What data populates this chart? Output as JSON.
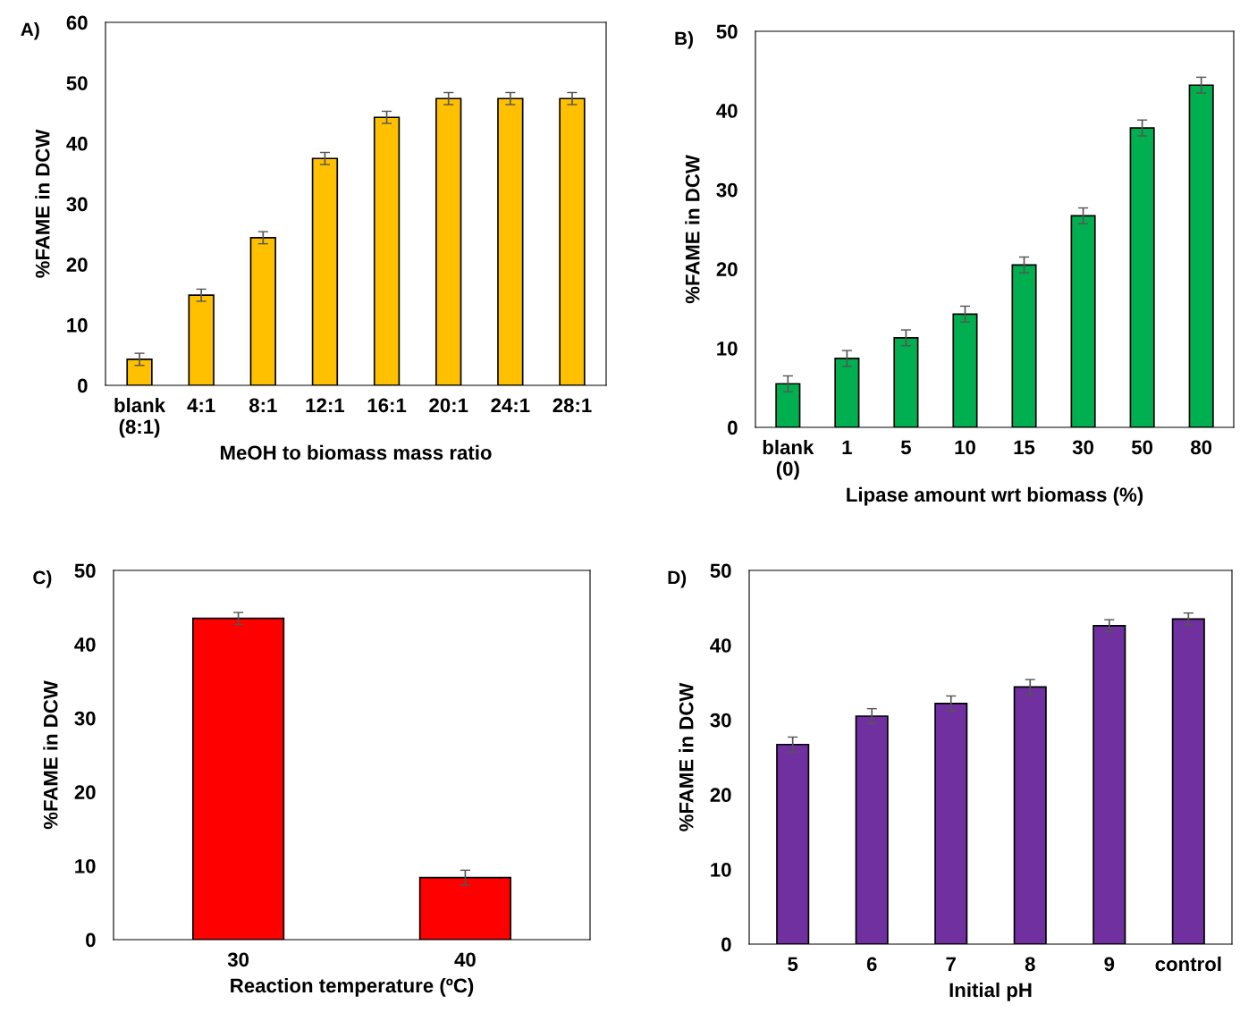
{
  "chart_data": [
    {
      "type": "bar",
      "categories": [
        "blank\n(8:1)",
        "4:1",
        "8:1",
        "12:1",
        "16:1",
        "20:1",
        "24:1",
        "28:1"
      ],
      "values": [
        4.3,
        14.9,
        24.4,
        37.5,
        44.3,
        47.4,
        47.4,
        47.4
      ],
      "errors": [
        1,
        1,
        1,
        1,
        1,
        1,
        1,
        1
      ],
      "color": "#ffc000",
      "xlabel": "MeOH to biomass mass ratio",
      "ylabel": "%FAME in DCW",
      "ylim": [
        0,
        60
      ],
      "yticks": [
        0,
        10,
        20,
        30,
        40,
        50,
        60
      ],
      "annotations": [
        "A)"
      ],
      "grid": false,
      "legend": false
    },
    {
      "type": "bar",
      "categories": [
        "blank\n(0)",
        "1",
        "5",
        "10",
        "15",
        "30",
        "50",
        "80"
      ],
      "values": [
        5.5,
        8.7,
        11.3,
        14.3,
        20.5,
        26.7,
        37.8,
        43.2
      ],
      "errors": [
        1,
        1,
        1,
        1,
        1,
        1,
        1,
        1
      ],
      "color": "#00b050",
      "xlabel": "Lipase amount wrt biomass (%)",
      "ylabel": "%FAME in DCW",
      "ylim": [
        0,
        50
      ],
      "yticks": [
        0,
        10,
        20,
        30,
        40,
        50
      ],
      "annotations": [
        "B)"
      ],
      "grid": false,
      "legend": false
    },
    {
      "type": "bar",
      "categories": [
        "30",
        "40"
      ],
      "values": [
        43.5,
        8.4
      ],
      "errors": [
        0.8,
        1
      ],
      "color": "#ff0000",
      "xlabel": "Reaction temperature (ºC)",
      "ylabel": "%FAME in DCW",
      "ylim": [
        0,
        50
      ],
      "yticks": [
        0,
        10,
        20,
        30,
        40,
        50
      ],
      "annotations": [
        "C)"
      ],
      "grid": false,
      "legend": false
    },
    {
      "type": "bar",
      "categories": [
        "5",
        "6",
        "7",
        "8",
        "9",
        "control"
      ],
      "values": [
        26.7,
        30.5,
        32.2,
        34.4,
        42.6,
        43.5
      ],
      "errors": [
        1,
        1,
        1,
        1,
        0.8,
        0.8
      ],
      "color": "#7030a0",
      "xlabel": "Initial pH",
      "ylabel": "%FAME in DCW",
      "ylim": [
        0,
        50
      ],
      "yticks": [
        0,
        10,
        20,
        30,
        40,
        50
      ],
      "annotations": [
        "D)"
      ],
      "grid": false,
      "legend": false
    }
  ]
}
